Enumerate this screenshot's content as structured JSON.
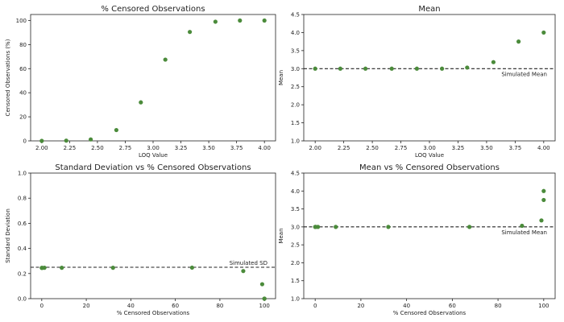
{
  "chart_data": [
    {
      "type": "scatter",
      "title": "% Censored Observations",
      "xlabel": "LOQ Value",
      "ylabel": "Censored Observations (%)",
      "xlim": [
        1.9,
        4.1
      ],
      "ylim": [
        0,
        105
      ],
      "xticks": [
        2.0,
        2.25,
        2.5,
        2.75,
        3.0,
        3.25,
        3.5,
        3.75,
        4.0
      ],
      "xtick_labels": [
        "2.00",
        "2.25",
        "2.50",
        "2.75",
        "3.00",
        "3.25",
        "3.50",
        "3.75",
        "4.00"
      ],
      "yticks": [
        0,
        20,
        40,
        60,
        80,
        100
      ],
      "ytick_labels": [
        "0",
        "20",
        "40",
        "60",
        "80",
        "100"
      ],
      "x": [
        2.0,
        2.22,
        2.44,
        2.67,
        2.89,
        3.11,
        3.33,
        3.56,
        3.78,
        4.0
      ],
      "y": [
        0,
        0.2,
        1.2,
        9,
        32,
        67.5,
        90.5,
        99,
        100,
        100
      ],
      "color": "#4b8b3b"
    },
    {
      "type": "scatter",
      "title": "Mean",
      "xlabel": "LOQ Value",
      "ylabel": "Mean",
      "xlim": [
        1.9,
        4.1
      ],
      "ylim": [
        1.0,
        4.5
      ],
      "xticks": [
        2.0,
        2.25,
        2.5,
        2.75,
        3.0,
        3.25,
        3.5,
        3.75,
        4.0
      ],
      "xtick_labels": [
        "2.00",
        "2.25",
        "2.50",
        "2.75",
        "3.00",
        "3.25",
        "3.50",
        "3.75",
        "4.00"
      ],
      "yticks": [
        1.0,
        1.5,
        2.0,
        2.5,
        3.0,
        3.5,
        4.0,
        4.5
      ],
      "ytick_labels": [
        "1.0",
        "1.5",
        "2.0",
        "2.5",
        "3.0",
        "3.5",
        "4.0",
        "4.5"
      ],
      "x": [
        2.0,
        2.22,
        2.44,
        2.67,
        2.89,
        3.11,
        3.33,
        3.56,
        3.78,
        4.0
      ],
      "y": [
        3.0,
        3.0,
        3.0,
        3.0,
        3.0,
        3.0,
        3.03,
        3.18,
        3.75,
        4.0
      ],
      "hline": {
        "y": 3.0,
        "label": "Simulated Mean"
      },
      "color": "#4b8b3b"
    },
    {
      "type": "scatter",
      "title": "Standard Deviation vs % Censored Observations",
      "xlabel": "% Censored Observations",
      "ylabel": "Standard Deviation",
      "xlim": [
        -5,
        105
      ],
      "ylim": [
        0,
        1.0
      ],
      "xticks": [
        0,
        20,
        40,
        60,
        80,
        100
      ],
      "xtick_labels": [
        "0",
        "20",
        "40",
        "60",
        "80",
        "100"
      ],
      "yticks": [
        0,
        0.2,
        0.4,
        0.6,
        0.8,
        1.0
      ],
      "ytick_labels": [
        "0.0",
        "0.2",
        "0.4",
        "0.6",
        "0.8",
        "1.0"
      ],
      "x": [
        0,
        0.2,
        1.2,
        9,
        32,
        67.5,
        90.5,
        99,
        100,
        100
      ],
      "y": [
        0.245,
        0.245,
        0.246,
        0.246,
        0.246,
        0.247,
        0.22,
        0.115,
        0.0,
        0.0
      ],
      "hline": {
        "y": 0.25,
        "label": "Simulated SD"
      },
      "color": "#4b8b3b"
    },
    {
      "type": "scatter",
      "title": "Mean vs % Censored Observations",
      "xlabel": "% Censored Observations",
      "ylabel": "Mean",
      "xlim": [
        -5,
        105
      ],
      "ylim": [
        1.0,
        4.5
      ],
      "xticks": [
        0,
        20,
        40,
        60,
        80,
        100
      ],
      "xtick_labels": [
        "0",
        "20",
        "40",
        "60",
        "80",
        "100"
      ],
      "yticks": [
        1.0,
        1.5,
        2.0,
        2.5,
        3.0,
        3.5,
        4.0,
        4.5
      ],
      "ytick_labels": [
        "1.0",
        "1.5",
        "2.0",
        "2.5",
        "3.0",
        "3.5",
        "4.0",
        "4.5"
      ],
      "x": [
        0,
        0.2,
        1.2,
        9,
        32,
        67.5,
        90.5,
        99,
        100,
        100
      ],
      "y": [
        3.0,
        3.0,
        3.0,
        3.0,
        3.0,
        3.0,
        3.03,
        3.18,
        3.75,
        4.0
      ],
      "hline": {
        "y": 3.0,
        "label": "Simulated Mean"
      },
      "color": "#4b8b3b"
    }
  ]
}
